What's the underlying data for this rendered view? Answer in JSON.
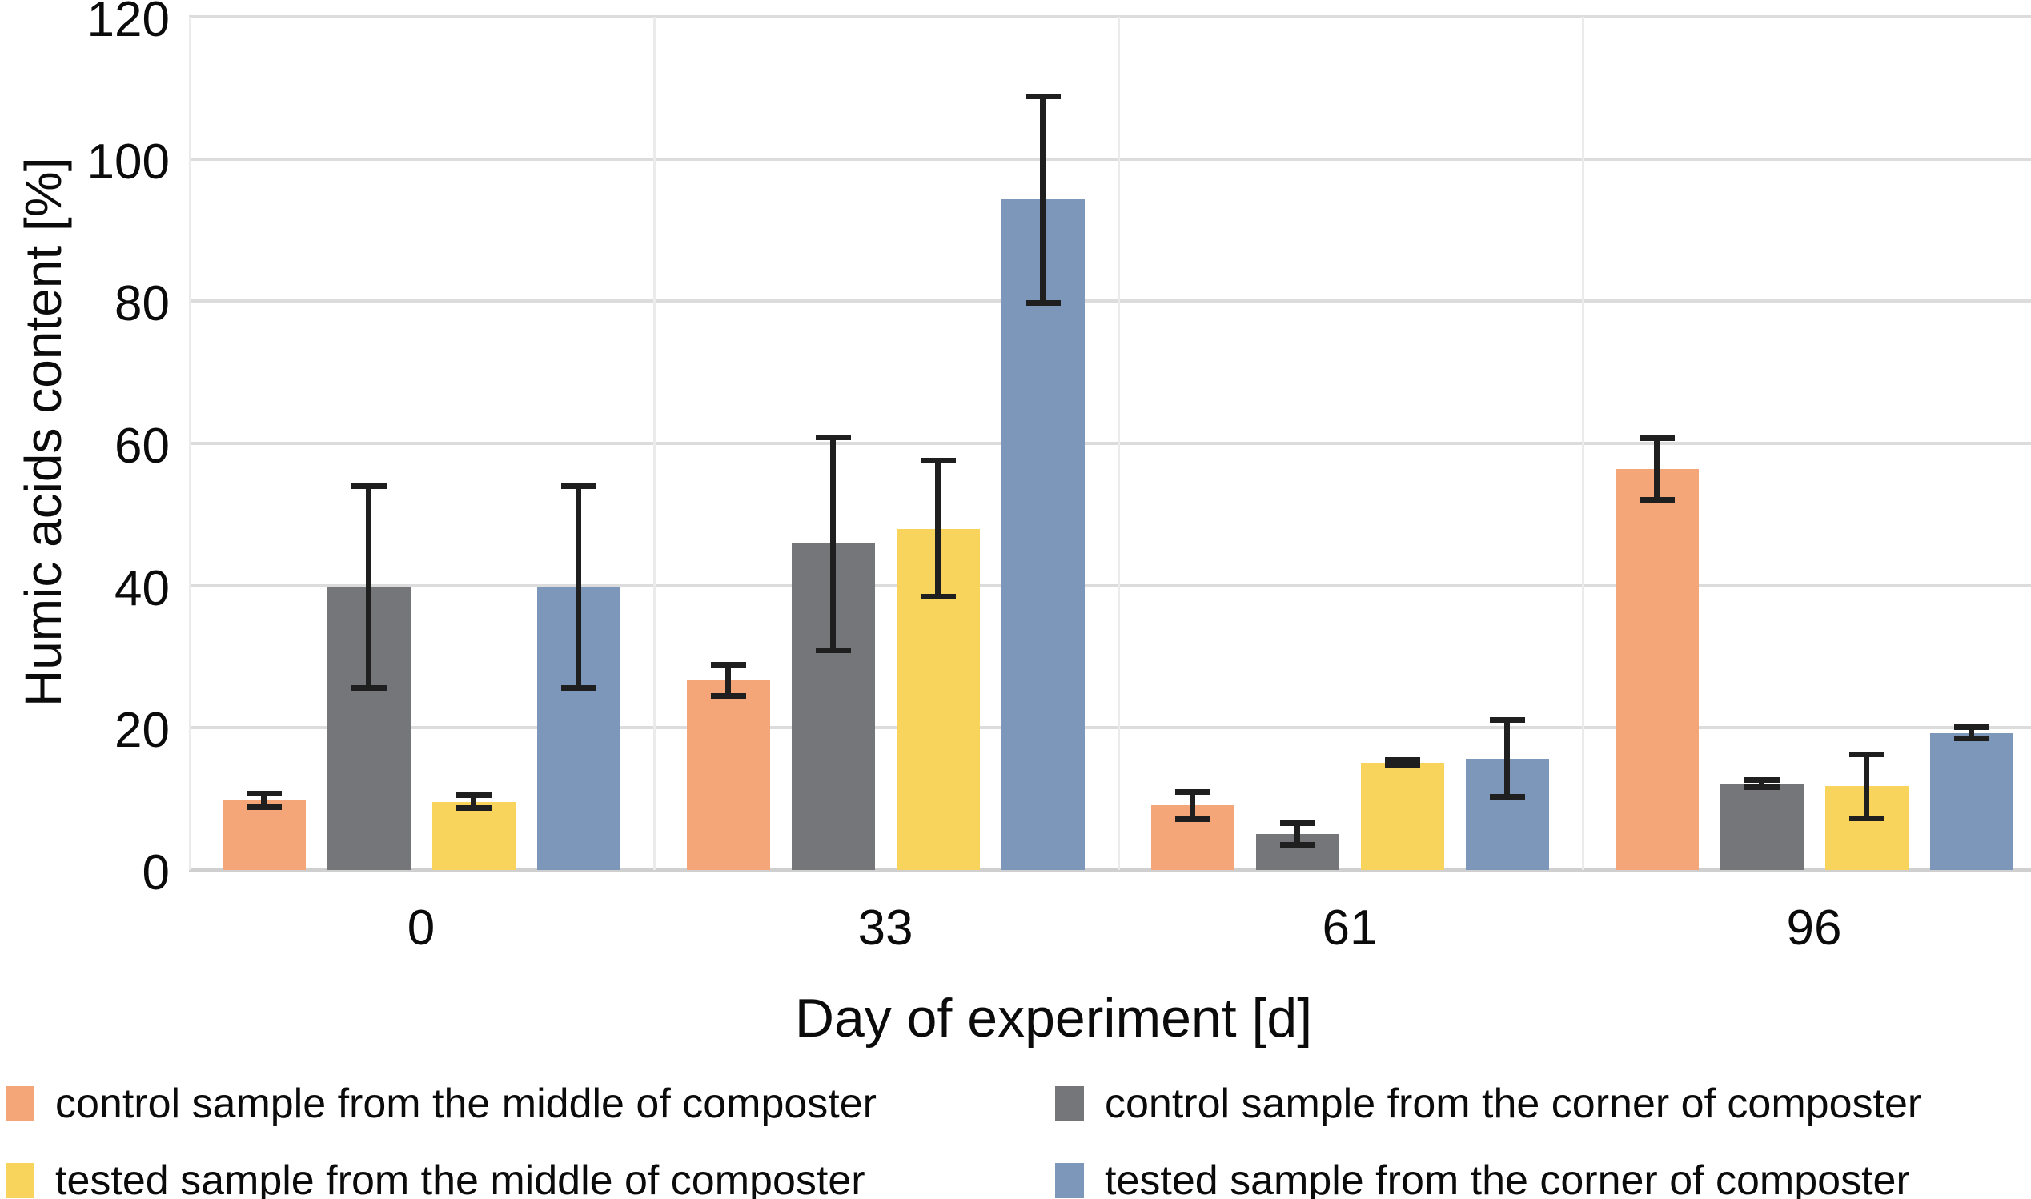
{
  "chart_data": {
    "type": "bar",
    "title": "",
    "categories": [
      "0",
      "33",
      "61",
      "96"
    ],
    "series": [
      {
        "name": "control sample from the middle of composter",
        "color": "#F4A678",
        "values": [
          9.8,
          26.7,
          9.1,
          56.4
        ],
        "errors": [
          1.0,
          2.2,
          1.9,
          4.3
        ]
      },
      {
        "name": "control sample from the corner of composter",
        "color": "#74767A",
        "values": [
          39.8,
          45.9,
          5.1,
          12.2
        ],
        "errors": [
          14.2,
          15.0,
          1.5,
          0.5
        ]
      },
      {
        "name": "tested sample from the middle of composter",
        "color": "#F8D45C",
        "values": [
          9.6,
          48.0,
          15.1,
          11.8
        ],
        "errors": [
          0.9,
          9.6,
          0.4,
          4.5
        ]
      },
      {
        "name": "tested sample from the corner of composter",
        "color": "#7C97BA",
        "values": [
          39.8,
          94.3,
          15.7,
          19.3
        ],
        "errors": [
          14.2,
          14.5,
          5.4,
          0.8
        ]
      }
    ],
    "xlabel": "Day of experiment [d]",
    "ylabel": "Humic acids content [%]",
    "ylim": [
      0,
      120
    ],
    "ytick_step": 20,
    "grid": true,
    "legend_position": "bottom-two-columns",
    "colors": {
      "grid": "#DCDCDC",
      "baseline": "#CFCFCF",
      "error_bar": "#1F1F1F",
      "text": "#0B0B0B",
      "background": "#FFFFFF"
    }
  },
  "legend": {
    "columns": [
      [
        0,
        2
      ],
      [
        1,
        3
      ]
    ]
  }
}
